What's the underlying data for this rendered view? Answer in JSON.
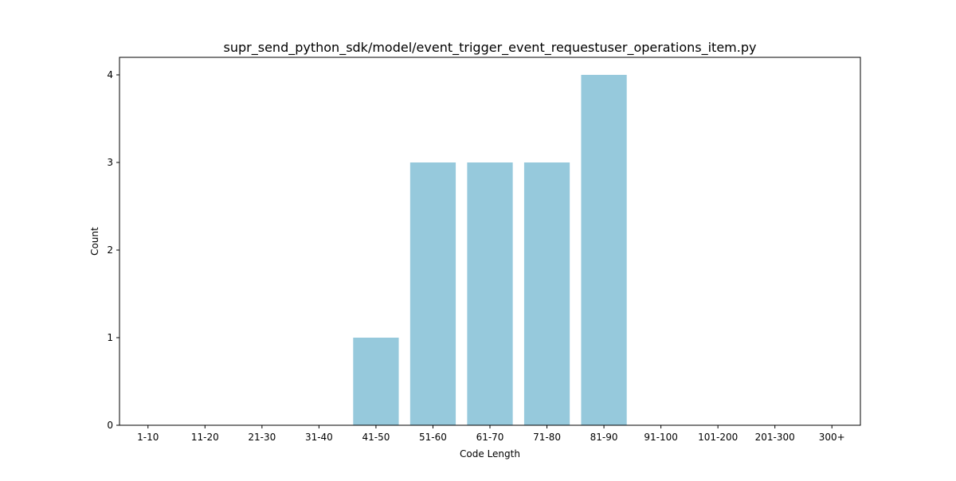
{
  "chart_data": {
    "type": "bar",
    "title": "supr_send_python_sdk/model/event_trigger_event_requestuser_operations_item.py",
    "xlabel": "Code Length",
    "ylabel": "Count",
    "categories": [
      "1-10",
      "11-20",
      "21-30",
      "31-40",
      "41-50",
      "51-60",
      "61-70",
      "71-80",
      "81-90",
      "91-100",
      "101-200",
      "201-300",
      "300+"
    ],
    "values": [
      0,
      0,
      0,
      0,
      1,
      3,
      3,
      3,
      4,
      0,
      0,
      0,
      0
    ],
    "yticks": [
      "0",
      "1",
      "2",
      "3",
      "4"
    ],
    "ylim": [
      0,
      4.2
    ],
    "grid": false,
    "bar_color": "#96c9dc",
    "axis_color": "#000000"
  }
}
